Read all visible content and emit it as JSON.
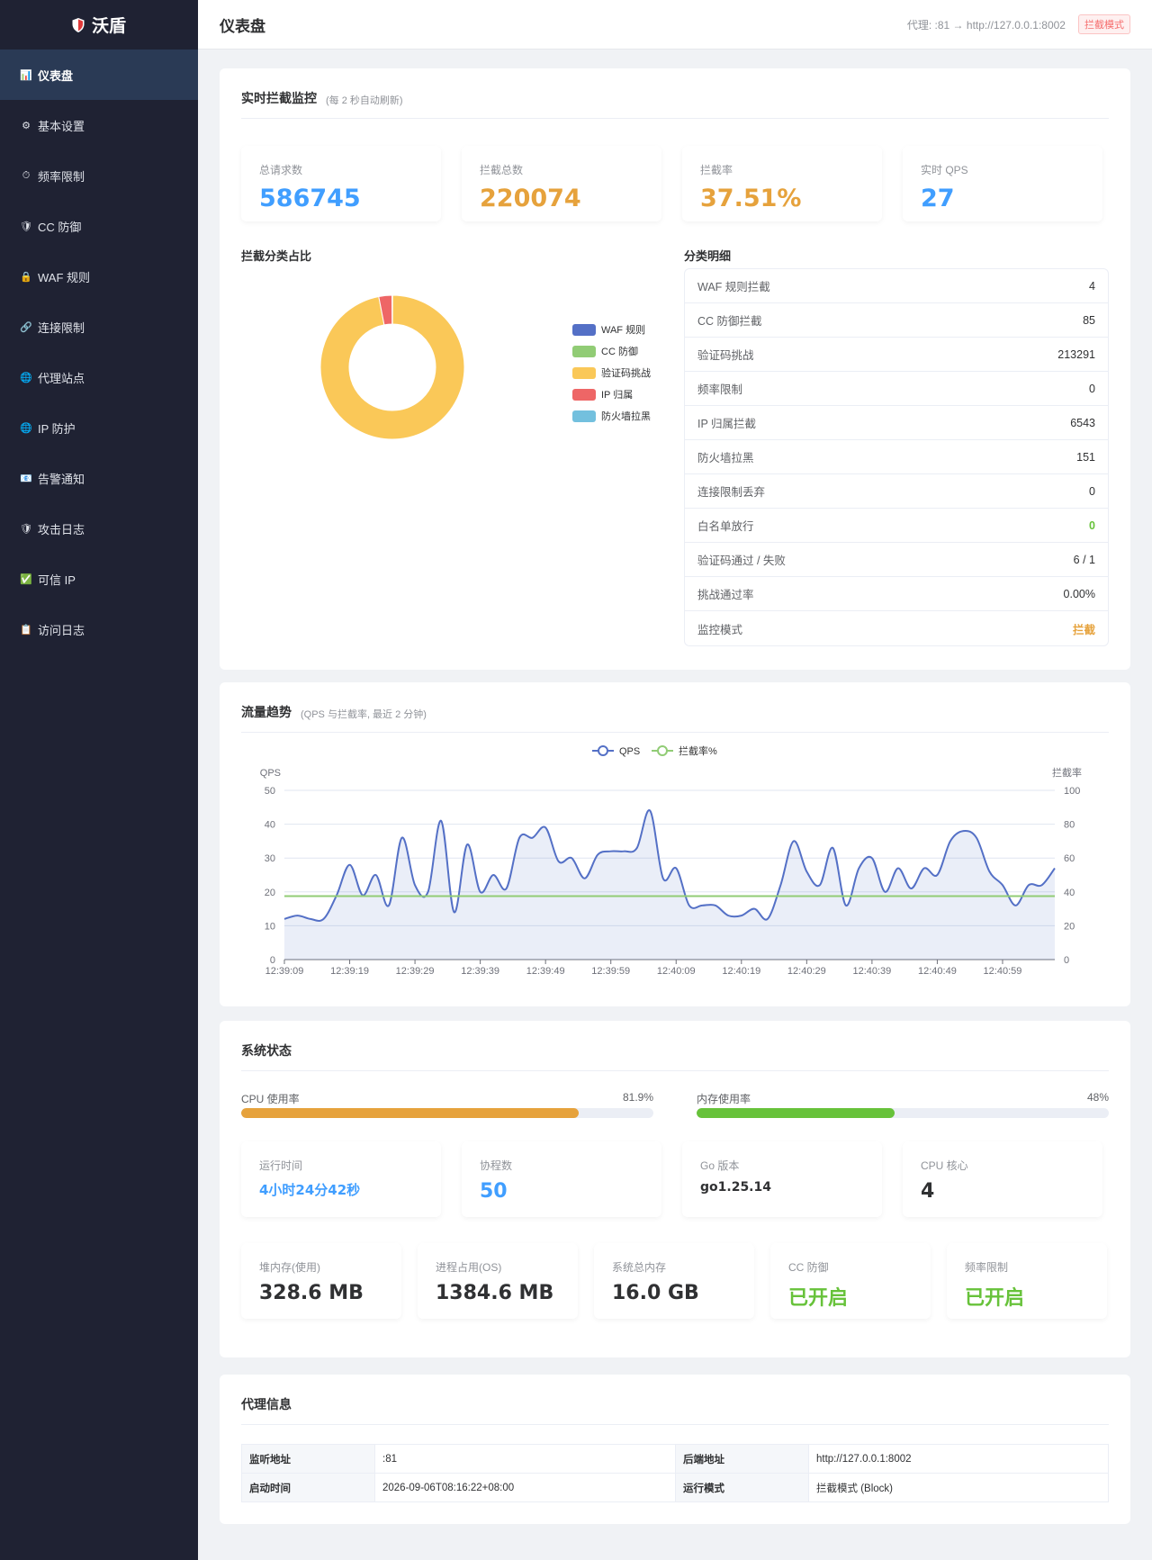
{
  "app": {
    "name": "沃盾"
  },
  "colors": {
    "sidebar": "#1f2233",
    "active": "#2a3a55",
    "blue": "#409eff",
    "orange": "#e6a23c",
    "green": "#67c23a",
    "red": "#f56c6c"
  },
  "sidebar": {
    "items": [
      {
        "label": "仪表盘",
        "icon": "chart-icon",
        "glyph": "📊",
        "active": true
      },
      {
        "label": "基本设置",
        "icon": "gear-icon",
        "glyph": "⚙"
      },
      {
        "label": "频率限制",
        "icon": "stopwatch-icon",
        "glyph": "⏱"
      },
      {
        "label": "CC 防御",
        "icon": "shield-icon",
        "glyph": "🛡"
      },
      {
        "label": "WAF 规则",
        "icon": "lock-icon",
        "glyph": "🔒"
      },
      {
        "label": "连接限制",
        "icon": "link-icon",
        "glyph": "🔗"
      },
      {
        "label": "代理站点",
        "icon": "globe-icon",
        "glyph": "🌐"
      },
      {
        "label": "IP 防护",
        "icon": "globe-icon",
        "glyph": "🌐"
      },
      {
        "label": "告警通知",
        "icon": "envelope-icon",
        "glyph": "📧"
      },
      {
        "label": "攻击日志",
        "icon": "shield-icon",
        "glyph": "🛡"
      },
      {
        "label": "可信 IP",
        "icon": "check-icon",
        "glyph": "✅"
      },
      {
        "label": "访问日志",
        "icon": "clipboard-icon",
        "glyph": "📋"
      }
    ]
  },
  "header": {
    "title": "仪表盘",
    "proxy": "代理: :81 → http://127.0.0.1:8002",
    "mode_badge": "拦截模式"
  },
  "monitor": {
    "title": "实时拦截监控",
    "subtitle": "(每 2 秒自动刷新)",
    "stats": [
      {
        "label": "总请求数",
        "value": "586745",
        "color": "blue"
      },
      {
        "label": "拦截总数",
        "value": "220074",
        "color": "orange"
      },
      {
        "label": "拦截率",
        "value": "37.51%",
        "color": "orange"
      },
      {
        "label": "实时 QPS",
        "value": "27",
        "color": "blue"
      }
    ],
    "pie_title": "拦截分类占比",
    "pie_legend": [
      {
        "label": "WAF 规则",
        "color": "#5470c6",
        "value": 4
      },
      {
        "label": "CC 防御",
        "color": "#91cc75",
        "value": 85
      },
      {
        "label": "验证码挑战",
        "color": "#fac858",
        "value": 213291
      },
      {
        "label": "IP 归属",
        "color": "#ee6666",
        "value": 6543
      },
      {
        "label": "防火墙拉黑",
        "color": "#73c0de",
        "value": 151
      }
    ],
    "detail_title": "分类明细",
    "details": [
      {
        "label": "WAF 规则拦截",
        "value": "4"
      },
      {
        "label": "CC 防御拦截",
        "value": "85"
      },
      {
        "label": "验证码挑战",
        "value": "213291"
      },
      {
        "label": "频率限制",
        "value": "0"
      },
      {
        "label": "IP 归属拦截",
        "value": "6543"
      },
      {
        "label": "防火墙拉黑",
        "value": "151"
      },
      {
        "label": "连接限制丢弃",
        "value": "0"
      },
      {
        "label": "白名单放行",
        "value": "0",
        "color": "green"
      },
      {
        "label": "验证码通过 / 失败",
        "value": "6 / 1"
      },
      {
        "label": "挑战通过率",
        "value": "0.00%"
      },
      {
        "label": "监控模式",
        "value": "拦截",
        "color": "orange"
      }
    ]
  },
  "traffic": {
    "title": "流量趋势",
    "subtitle": "(QPS 与拦截率, 最近 2 分钟)",
    "chart_data": {
      "type": "line",
      "x": [
        "12:39:09",
        "12:39:11",
        "12:39:13",
        "12:39:15",
        "12:39:17",
        "12:39:19",
        "12:39:21",
        "12:39:23",
        "12:39:25",
        "12:39:27",
        "12:39:29",
        "12:39:31",
        "12:39:33",
        "12:39:35",
        "12:39:37",
        "12:39:39",
        "12:39:41",
        "12:39:43",
        "12:39:45",
        "12:39:47",
        "12:39:49",
        "12:39:51",
        "12:39:53",
        "12:39:55",
        "12:39:57",
        "12:39:59",
        "12:40:01",
        "12:40:03",
        "12:40:05",
        "12:40:07",
        "12:40:09",
        "12:40:11",
        "12:40:13",
        "12:40:15",
        "12:40:17",
        "12:40:19",
        "12:40:21",
        "12:40:23",
        "12:40:25",
        "12:40:27",
        "12:40:29",
        "12:40:31",
        "12:40:33",
        "12:40:35",
        "12:40:37",
        "12:40:39",
        "12:40:41",
        "12:40:43",
        "12:40:45",
        "12:40:47",
        "12:40:49",
        "12:40:51",
        "12:40:53",
        "12:40:55",
        "12:40:57",
        "12:40:59",
        "12:41:01",
        "12:41:03",
        "12:41:05",
        "12:41:07"
      ],
      "x_ticks": [
        "12:39:09",
        "12:39:19",
        "12:39:29",
        "12:39:39",
        "12:39:49",
        "12:39:59",
        "12:40:09",
        "12:40:19",
        "12:40:29",
        "12:40:39",
        "12:40:49",
        "12:40:59"
      ],
      "legend": [
        "QPS",
        "拦截率%"
      ],
      "series": [
        {
          "name": "QPS",
          "axis": "left",
          "color": "#5470c6",
          "values": [
            12,
            13,
            12,
            12,
            19,
            28,
            19,
            25,
            16,
            36,
            22,
            20,
            41,
            14,
            34,
            20,
            25,
            21,
            36,
            36,
            39,
            29,
            30,
            24,
            31,
            32,
            32,
            33,
            44,
            24,
            27,
            16,
            16,
            16,
            13,
            13,
            15,
            12,
            22,
            35,
            26,
            22,
            33,
            16,
            27,
            30,
            20,
            27,
            21,
            27,
            25,
            35,
            38,
            36,
            26,
            22,
            16,
            22,
            22,
            27
          ]
        },
        {
          "name": "拦截率%",
          "axis": "right",
          "color": "#91cc75",
          "values": [
            37.5,
            37.5,
            37.5,
            37.5,
            37.5,
            37.5,
            37.5,
            37.5,
            37.5,
            37.5,
            37.5,
            37.5,
            37.5,
            37.5,
            37.5,
            37.5,
            37.5,
            37.5,
            37.5,
            37.5,
            37.5,
            37.5,
            37.5,
            37.5,
            37.5,
            37.5,
            37.5,
            37.5,
            37.5,
            37.5,
            37.5,
            37.5,
            37.5,
            37.5,
            37.5,
            37.5,
            37.5,
            37.5,
            37.5,
            37.5,
            37.5,
            37.5,
            37.5,
            37.5,
            37.5,
            37.5,
            37.5,
            37.5,
            37.5,
            37.5,
            37.5,
            37.5,
            37.5,
            37.5,
            37.5,
            37.5,
            37.5,
            37.5,
            37.5,
            37.5
          ]
        }
      ],
      "ylabel": "QPS",
      "ylabel_right": "拦截率",
      "ylim": [
        0,
        50
      ],
      "ylim_right": [
        0,
        100
      ],
      "y_ticks": [
        0,
        10,
        20,
        30,
        40,
        50
      ],
      "y_ticks_right": [
        0,
        20,
        40,
        60,
        80,
        100
      ],
      "grid": true
    }
  },
  "system": {
    "title": "系统状态",
    "cpu": {
      "label": "CPU 使用率",
      "value": "81.9%",
      "fraction": 0.819
    },
    "mem": {
      "label": "内存使用率",
      "value": "48%",
      "fraction": 0.48
    },
    "row1": [
      {
        "label": "运行时间",
        "value": "4小时24分42秒",
        "color": "blue"
      },
      {
        "label": "协程数",
        "value": "50",
        "color": "blue"
      },
      {
        "label": "Go 版本",
        "value": "go1.25.14",
        "color": "dark"
      },
      {
        "label": "CPU 核心",
        "value": "4",
        "color": "dark"
      }
    ],
    "row2": [
      {
        "label": "堆内存(使用)",
        "value": "328.6 MB",
        "color": "dark"
      },
      {
        "label": "进程占用(OS)",
        "value": "1384.6 MB",
        "color": "dark"
      },
      {
        "label": "系统总内存",
        "value": "16.0 GB",
        "color": "dark"
      },
      {
        "label": "CC 防御",
        "value": "已开启",
        "color": "green"
      },
      {
        "label": "频率限制",
        "value": "已开启",
        "color": "green"
      }
    ]
  },
  "proxy_info": {
    "title": "代理信息",
    "rows": [
      {
        "k1": "监听地址",
        "v1": ":81",
        "k2": "后端地址",
        "v2": "http://127.0.0.1:8002"
      },
      {
        "k1": "启动时间",
        "v1": "2026-09-06T08:16:22+08:00",
        "k2": "运行模式",
        "v2": "拦截模式 (Block)"
      }
    ]
  }
}
